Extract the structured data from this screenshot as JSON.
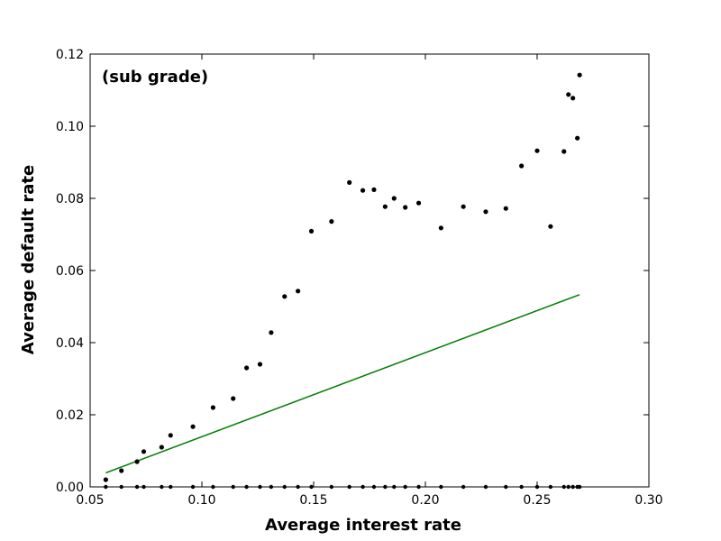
{
  "chart_data": {
    "type": "scatter",
    "title": "",
    "annotation": "(sub grade)",
    "xlabel": "Average interest rate",
    "ylabel": "Average default rate",
    "xlim": [
      0.05,
      0.3
    ],
    "ylim": [
      0.0,
      0.12
    ],
    "xticks": [
      "0.05",
      "0.10",
      "0.15",
      "0.20",
      "0.25",
      "0.30"
    ],
    "yticks": [
      "0.00",
      "0.02",
      "0.04",
      "0.06",
      "0.08",
      "0.10",
      "0.12"
    ],
    "grid": false,
    "colors": {
      "points": "#000000",
      "fit_line": "#007f00"
    },
    "series": [
      {
        "kind": "points",
        "x": [
          0.057,
          0.064,
          0.071,
          0.074,
          0.082,
          0.086,
          0.096,
          0.105,
          0.114,
          0.12,
          0.126,
          0.131,
          0.137,
          0.143,
          0.149,
          0.158,
          0.166,
          0.172,
          0.177,
          0.182,
          0.186,
          0.191,
          0.197,
          0.207,
          0.217,
          0.227,
          0.236,
          0.243,
          0.25,
          0.256,
          0.262,
          0.264,
          0.266,
          0.268,
          0.269
        ],
        "y": [
          0.002,
          0.0045,
          0.007,
          0.0098,
          0.011,
          0.0143,
          0.0167,
          0.022,
          0.0245,
          0.033,
          0.034,
          0.0428,
          0.0528,
          0.0543,
          0.0709,
          0.0736,
          0.0844,
          0.0822,
          0.0824,
          0.0777,
          0.08,
          0.0775,
          0.0787,
          0.0718,
          0.0777,
          0.0763,
          0.0772,
          0.089,
          0.0932,
          0.0722,
          0.093,
          0.1088,
          0.1078,
          0.0967,
          0.1142
        ]
      },
      {
        "kind": "baseline_points",
        "x": [
          0.057,
          0.064,
          0.071,
          0.074,
          0.082,
          0.086,
          0.096,
          0.105,
          0.114,
          0.12,
          0.126,
          0.131,
          0.137,
          0.143,
          0.149,
          0.158,
          0.166,
          0.172,
          0.177,
          0.182,
          0.186,
          0.191,
          0.197,
          0.207,
          0.217,
          0.227,
          0.236,
          0.243,
          0.25,
          0.256,
          0.262,
          0.264,
          0.266,
          0.268,
          0.269
        ],
        "y": [
          0,
          0,
          0,
          0,
          0,
          0,
          0,
          0,
          0,
          0,
          0,
          0,
          0,
          0,
          0,
          0,
          0,
          0,
          0,
          0,
          0,
          0,
          0,
          0,
          0,
          0,
          0,
          0,
          0,
          0,
          0,
          0,
          0,
          0,
          0
        ]
      },
      {
        "kind": "line",
        "x": [
          0.057,
          0.269
        ],
        "y": [
          0.0039,
          0.0533
        ]
      }
    ]
  }
}
